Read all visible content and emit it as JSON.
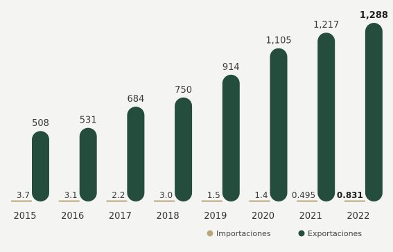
{
  "chart_data": {
    "type": "bar",
    "categories": [
      "2015",
      "2016",
      "2017",
      "2018",
      "2019",
      "2020",
      "2021",
      "2022"
    ],
    "series": [
      {
        "name": "Importaciones",
        "values": [
          3.7,
          3.1,
          2.2,
          3.0,
          1.5,
          1.4,
          0.495,
          0.831
        ],
        "labels": [
          "3.7",
          "3.1",
          "2.2",
          "3.0",
          "1.5",
          "1.4",
          "0.495",
          "0.831"
        ],
        "color": "#b9a77a"
      },
      {
        "name": "Exportaciones",
        "values": [
          508,
          531,
          684,
          750,
          914,
          1105,
          1217,
          1288
        ],
        "labels": [
          "508",
          "531",
          "684",
          "750",
          "914",
          "1,105",
          "1,217",
          "1,288"
        ],
        "color": "#244d3e"
      }
    ],
    "ylim": [
      0,
      1288
    ],
    "legend_position": "bottom-right",
    "bold_category": "2022"
  }
}
